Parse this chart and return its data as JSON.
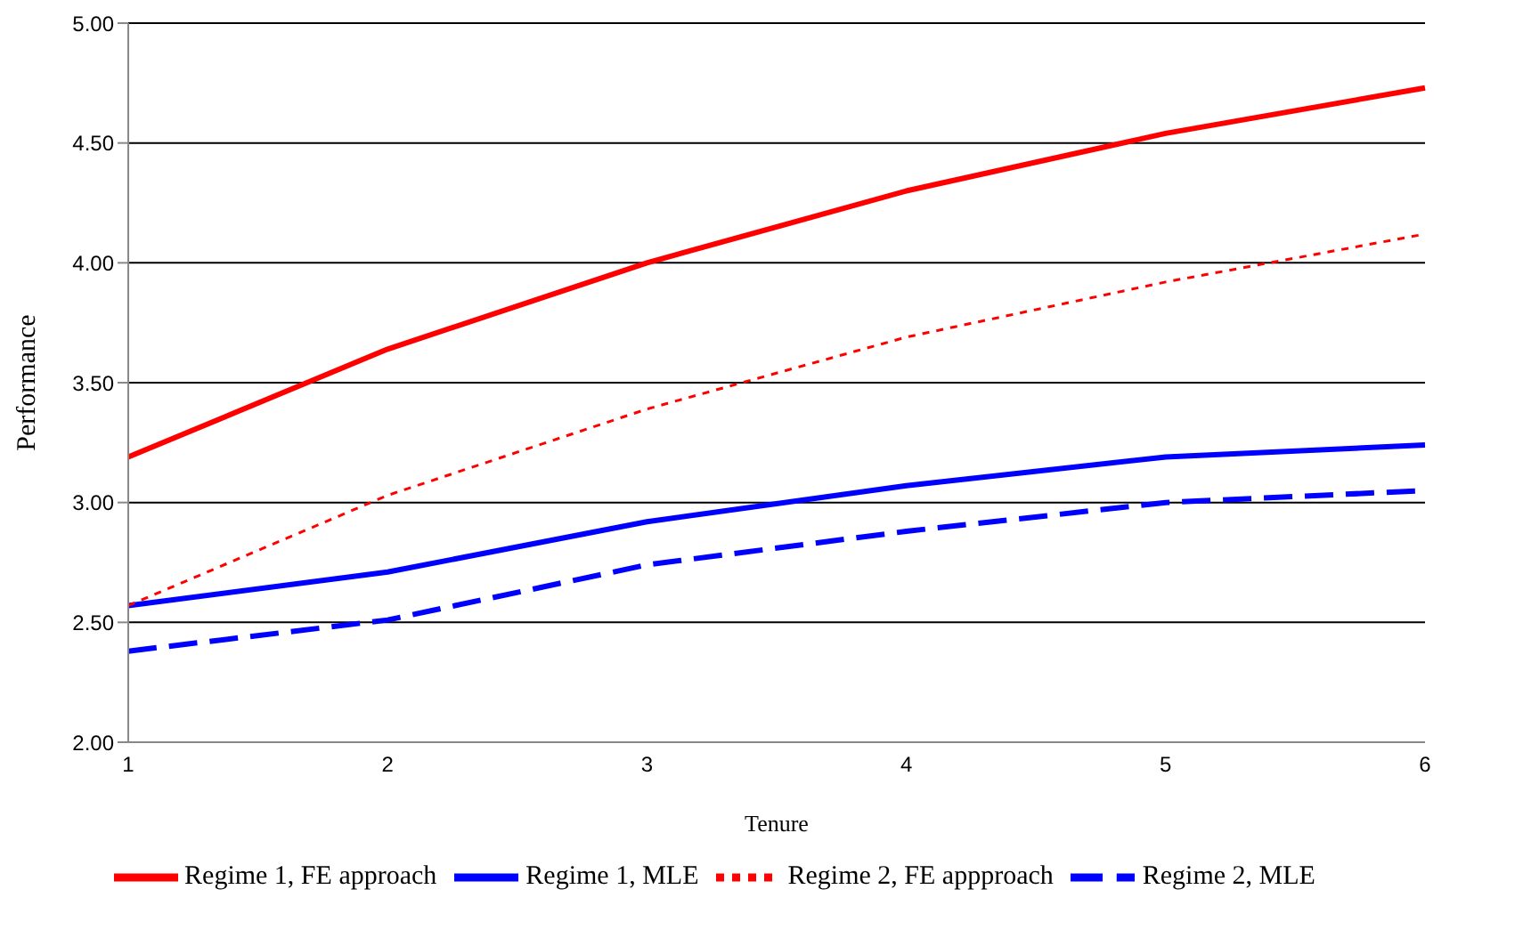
{
  "chart_data": {
    "type": "line",
    "xlabel": "Tenure",
    "ylabel": "Performance",
    "categories": [
      "1",
      "2",
      "3",
      "4",
      "5",
      "6"
    ],
    "series": [
      {
        "name": "Regime 1, FE approach",
        "color": "#ff0000",
        "line_style": "solid",
        "values": [
          3.19,
          3.64,
          4.0,
          4.3,
          4.54,
          4.73
        ]
      },
      {
        "name": "Regime 1, MLE",
        "color": "#0000ff",
        "line_style": "solid",
        "values": [
          2.57,
          2.71,
          2.92,
          3.07,
          3.19,
          3.24
        ]
      },
      {
        "name": "Regime 2, FE appproach",
        "color": "#ff0000",
        "line_style": "dotted",
        "values": [
          2.57,
          3.03,
          3.39,
          3.69,
          3.92,
          4.12
        ]
      },
      {
        "name": "Regime 2, MLE",
        "color": "#0000ff",
        "line_style": "dashed",
        "values": [
          2.38,
          2.51,
          2.74,
          2.88,
          3.0,
          3.05
        ]
      }
    ],
    "ylim": [
      2,
      5
    ],
    "yticks": [
      {
        "value": 2,
        "label": "2.00"
      },
      {
        "value": 2.5,
        "label": "2.50"
      },
      {
        "value": 3,
        "label": "3.00"
      },
      {
        "value": 3.5,
        "label": "3.50"
      },
      {
        "value": 4,
        "label": "4.00"
      },
      {
        "value": 4.5,
        "label": "4.50"
      },
      {
        "value": 5,
        "label": "5.00"
      }
    ],
    "grid": "y",
    "legend": "bottom",
    "marker": "none"
  }
}
